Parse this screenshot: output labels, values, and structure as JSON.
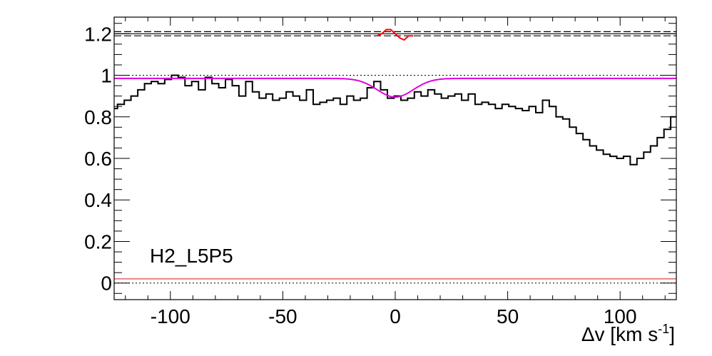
{
  "chart_data": {
    "type": "line",
    "title": "",
    "xlabel": "Δv [km s",
    "xlabel_superscript": "-1",
    "xlabel_close": "]",
    "ylabel": "",
    "xlim": [
      -125,
      125
    ],
    "ylim": [
      -0.08,
      1.28
    ],
    "grid": false,
    "x_ticks": [
      -100,
      -50,
      0,
      50,
      100
    ],
    "x_tick_labels": [
      "-100",
      "-50",
      "0",
      "50",
      "100"
    ],
    "y_ticks": [
      0,
      0.2,
      0.4,
      0.6,
      0.8,
      1,
      1.2
    ],
    "y_tick_labels": [
      "0",
      "0.2",
      "0.4",
      "0.6",
      "0.8",
      "1",
      "1.2"
    ],
    "annotation": "H2_L5P5",
    "series": [
      {
        "role": "observed-spectrum",
        "color": "#000000",
        "step": true,
        "x": [
          -125,
          -122,
          -119,
          -116,
          -113,
          -110,
          -107,
          -104,
          -101,
          -98,
          -95,
          -92,
          -89,
          -86,
          -83,
          -80,
          -77,
          -74,
          -71,
          -68,
          -65,
          -62,
          -59,
          -56,
          -53,
          -50,
          -47,
          -44,
          -41,
          -38,
          -35,
          -32,
          -29,
          -26,
          -23,
          -20,
          -17,
          -14,
          -11,
          -8,
          -5,
          -2,
          1,
          4,
          7,
          10,
          13,
          16,
          19,
          22,
          25,
          28,
          31,
          34,
          37,
          40,
          43,
          46,
          49,
          52,
          55,
          58,
          61,
          64,
          67,
          70,
          73,
          76,
          79,
          82,
          85,
          88,
          91,
          94,
          97,
          100,
          103,
          106,
          109,
          112,
          115,
          118,
          121,
          124
        ],
        "y": [
          0.84,
          0.86,
          0.88,
          0.9,
          0.93,
          0.96,
          0.97,
          0.96,
          0.98,
          1.0,
          0.99,
          0.95,
          0.97,
          0.93,
          0.99,
          0.96,
          0.94,
          0.98,
          0.95,
          0.9,
          0.97,
          0.92,
          0.89,
          0.91,
          0.88,
          0.89,
          0.92,
          0.9,
          0.88,
          0.93,
          0.86,
          0.87,
          0.88,
          0.89,
          0.86,
          0.9,
          0.88,
          0.89,
          0.94,
          0.97,
          0.93,
          0.89,
          0.9,
          0.88,
          0.89,
          0.92,
          0.9,
          0.93,
          0.91,
          0.89,
          0.9,
          0.91,
          0.88,
          0.91,
          0.86,
          0.87,
          0.86,
          0.84,
          0.86,
          0.85,
          0.84,
          0.83,
          0.85,
          0.82,
          0.88,
          0.85,
          0.8,
          0.79,
          0.75,
          0.72,
          0.69,
          0.66,
          0.64,
          0.62,
          0.61,
          0.6,
          0.61,
          0.57,
          0.6,
          0.63,
          0.66,
          0.7,
          0.74,
          0.8
        ]
      },
      {
        "role": "fitted-profile",
        "color": "#e000e0",
        "center": 0,
        "depth": 0.09,
        "sigma": 8,
        "continuum": 0.985,
        "xmin": -125,
        "xmax": 125
      },
      {
        "role": "residuals",
        "color": "#ff0000",
        "x": [
          -8,
          -6,
          -4,
          -2,
          0,
          2,
          4,
          6,
          8
        ],
        "y": [
          1.19,
          1.2,
          1.22,
          1.22,
          1.2,
          1.18,
          1.17,
          1.19,
          1.19
        ]
      }
    ],
    "reference_lines": [
      {
        "style": "dotted",
        "color": "#000000",
        "y": 1.0
      },
      {
        "style": "dotted",
        "color": "#000000",
        "y": 0.0
      },
      {
        "style": "solid",
        "color": "#000000",
        "y": 1.2
      },
      {
        "style": "dashed",
        "color": "#000000",
        "y": 1.21
      },
      {
        "style": "dashed",
        "color": "#000000",
        "y": 1.19
      },
      {
        "style": "solid",
        "color": "#e04040",
        "y": 0.02
      }
    ]
  }
}
